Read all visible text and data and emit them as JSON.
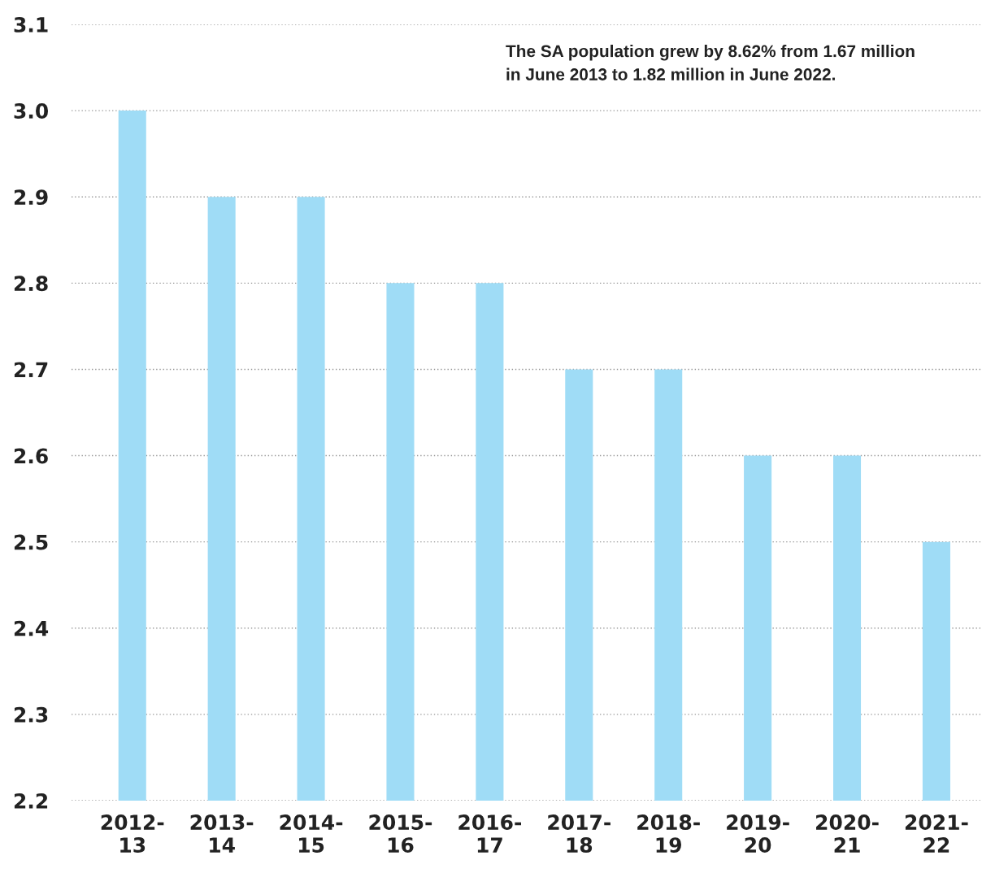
{
  "chart_data": {
    "type": "bar",
    "categories": [
      "2012-\n13",
      "2013-\n14",
      "2014-\n15",
      "2015-\n16",
      "2016-\n17",
      "2017-\n18",
      "2018-\n19",
      "2019-\n20",
      "2020-\n21",
      "2021-\n22"
    ],
    "values": [
      3.0,
      2.9,
      2.9,
      2.8,
      2.8,
      2.7,
      2.7,
      2.6,
      2.6,
      2.5
    ],
    "color": "#9fdcf6",
    "ylim": [
      2.2,
      3.1
    ],
    "yticks": [
      {
        "value": 2.2,
        "label": "2.2"
      },
      {
        "value": 2.3,
        "label": "2.3"
      },
      {
        "value": 2.4,
        "label": "2.4"
      },
      {
        "value": 2.5,
        "label": "2.5"
      },
      {
        "value": 2.6,
        "label": "2.6"
      },
      {
        "value": 2.7,
        "label": "2.7"
      },
      {
        "value": 2.8,
        "label": "2.8"
      },
      {
        "value": 2.9,
        "label": "2.9"
      },
      {
        "value": 3.0,
        "label": "3.0"
      },
      {
        "value": 3.1,
        "label": "3.1"
      }
    ],
    "grid": "y",
    "annotations": [
      "The SA population grew by 8.62% from 1.67 million\nin June 2013 to 1.82 million in June 2022."
    ]
  }
}
